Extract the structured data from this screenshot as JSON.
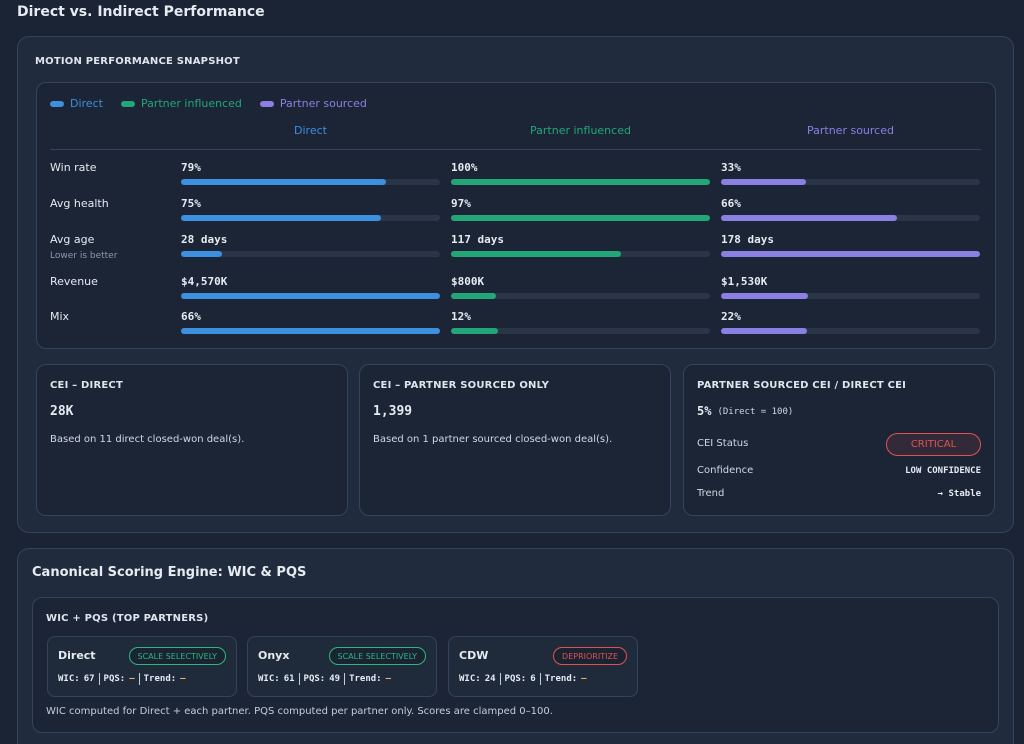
{
  "page_title": "Direct vs. Indirect Performance",
  "snapshot": {
    "title": "MOTION PERFORMANCE SNAPSHOT",
    "series": [
      {
        "name": "Direct",
        "color": "#3d8fe0"
      },
      {
        "name": "Partner influenced",
        "color": "#22a678"
      },
      {
        "name": "Partner sourced",
        "color": "#8a7fe3"
      }
    ],
    "rows": [
      {
        "label": "Win rate",
        "values": [
          79,
          100,
          33
        ],
        "value_labels": [
          "79%",
          "100%",
          "33%"
        ]
      },
      {
        "label": "Avg health",
        "values": [
          75,
          97,
          66
        ],
        "value_labels": [
          "75%",
          "97%",
          "66%"
        ]
      },
      {
        "label": "Avg age",
        "note": "Lower is better",
        "values": [
          28,
          117,
          178
        ],
        "value_labels": [
          "28 days",
          "117 days",
          "178 days"
        ]
      },
      {
        "label": "Revenue",
        "values": [
          4570,
          800,
          1530
        ],
        "value_labels": [
          "$4,570K",
          "$800K",
          "$1,530K"
        ]
      },
      {
        "label": "Mix",
        "values": [
          66,
          12,
          22
        ],
        "value_labels": [
          "66%",
          "12%",
          "22%"
        ]
      }
    ]
  },
  "cei_cards": [
    {
      "title": "CEI – DIRECT",
      "value": "28K",
      "note": "Based on 11 direct closed-won deal(s)."
    },
    {
      "title": "CEI – PARTNER SOURCED ONLY",
      "value": "1,399",
      "note": "Based on 1 partner sourced closed-won deal(s)."
    }
  ],
  "ratio_card": {
    "title": "PARTNER SOURCED CEI / DIRECT CEI",
    "value": "5%",
    "value_note": "(Direct = 100)",
    "rows": [
      {
        "label": "CEI Status",
        "value": "CRITICAL",
        "badge_color": "#e0524f"
      },
      {
        "label": "Confidence",
        "value": "LOW CONFIDENCE"
      },
      {
        "label": "Trend",
        "value": "→ Stable"
      }
    ]
  },
  "scoring": {
    "title": "Canonical Scoring Engine: WIC & PQS",
    "panel_title": "WIC + PQS (TOP PARTNERS)",
    "metric_labels": [
      "WIC:",
      "PQS:",
      "Trend:"
    ],
    "partners": [
      {
        "name": "Direct",
        "badge": "SCALE SELECTIVELY",
        "badge_color": "#2fb57a",
        "metrics": [
          67,
          "–",
          "–"
        ]
      },
      {
        "name": "Onyx",
        "badge": "SCALE SELECTIVELY",
        "badge_color": "#2fb57a",
        "metrics": [
          61,
          49,
          "–"
        ]
      },
      {
        "name": "CDW",
        "badge": "DEPRIORITIZE",
        "badge_color": "#e0524f",
        "metrics": [
          24,
          6,
          "–"
        ]
      }
    ],
    "footer": "WIC computed for Direct + each partner. PQS computed per partner only. Scores are clamped 0–100."
  }
}
